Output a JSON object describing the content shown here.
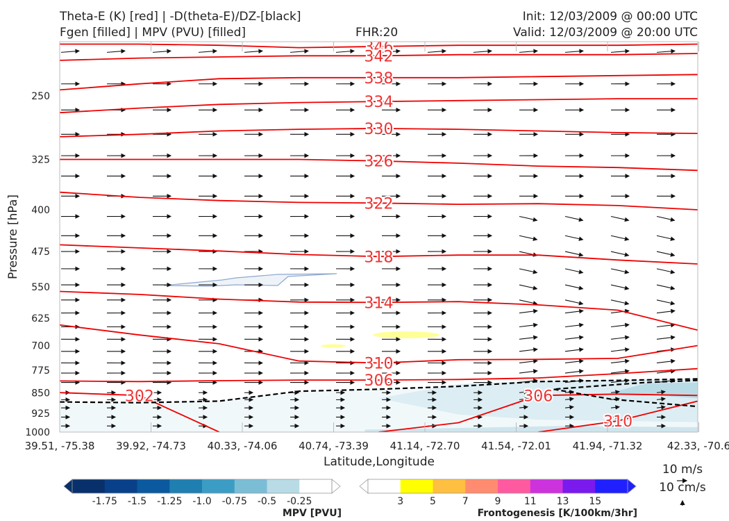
{
  "header": {
    "title_left_1": "Theta-E (K) [red] | -D(theta-E)/DZ-[black]",
    "title_left_2": "Fgen [filled] | MPV (PVU) [filled]",
    "fhr": "FHR:20",
    "init": "Init: 12/03/2009 @ 00:00 UTC",
    "valid": "Valid: 12/03/2009 @ 20:00 UTC"
  },
  "chart_data": {
    "type": "cross-section",
    "xlabel": "Latitude,Longitude",
    "ylabel": "Pressure [hPa]",
    "x_ticks": [
      "39.51, -75.38",
      "39.92, -74.73",
      "40.33, -74.06",
      "40.74, -73.39",
      "41.14, -72.70",
      "41.54, -72.01",
      "41.94, -71.32",
      "42.33, -70.6"
    ],
    "y_ticks": [
      250,
      325,
      400,
      475,
      550,
      625,
      700,
      775,
      850,
      925,
      1000
    ],
    "ylim": [
      1000,
      200
    ],
    "y_scale": "log",
    "theta_e_contours": [
      {
        "label": "346",
        "color": "#ee0000",
        "levels_hPa": [
          202,
          202,
          203,
          205,
          204,
          203,
          203,
          203,
          202
        ]
      },
      {
        "label": "342",
        "color": "#ee0000",
        "levels_hPa": [
          216,
          214,
          213,
          212,
          212,
          211,
          211,
          211,
          210
        ]
      },
      {
        "label": "338",
        "color": "#ee0000",
        "levels_hPa": [
          244,
          238,
          233,
          232,
          232,
          232,
          231,
          230,
          229
        ]
      },
      {
        "label": "334",
        "color": "#ee0000",
        "levels_hPa": [
          268,
          263,
          259,
          257,
          256,
          255,
          254,
          253,
          253
        ]
      },
      {
        "label": "330",
        "color": "#ee0000",
        "levels_hPa": [
          296,
          293,
          289,
          287,
          286,
          287,
          289,
          291,
          292
        ]
      },
      {
        "label": "326",
        "color": "#ee0000",
        "levels_hPa": [
          325,
          325,
          325,
          325,
          327,
          330,
          334,
          336,
          340
        ]
      },
      {
        "label": "322",
        "color": "#ee0000",
        "levels_hPa": [
          372,
          380,
          385,
          388,
          389,
          391,
          390,
          393,
          400
        ]
      },
      {
        "label": "318",
        "color": "#ee0000",
        "levels_hPa": [
          462,
          468,
          474,
          481,
          485,
          482,
          482,
          492,
          500
        ]
      },
      {
        "label": "314",
        "color": "#ee0000",
        "levels_hPa": [
          560,
          567,
          578,
          585,
          586,
          584,
          592,
          605,
          657
        ]
      },
      {
        "label": "310",
        "color": "#ee0000",
        "levels_hPa": [
          643,
          670,
          695,
          746,
          752,
          742,
          741,
          738,
          700
        ]
      },
      {
        "label": "306",
        "color": "#ee0000",
        "levels_hPa": [
          810,
          812,
          809,
          807,
          807,
          805,
          800,
          786,
          770
        ]
      },
      {
        "label": "306",
        "color": "#ee0000",
        "levels_hPa": [
          null,
          null,
          null,
          null,
          1000,
          962,
          860,
          855,
          860
        ]
      },
      {
        "label": "302",
        "color": "#ee0000",
        "levels_hPa": [
          850,
          860,
          1000,
          null,
          null,
          null,
          null,
          null,
          null
        ]
      },
      {
        "label": "310",
        "color": "#ee0000",
        "levels_hPa": [
          null,
          null,
          null,
          null,
          null,
          null,
          1000,
          955,
          880
        ]
      }
    ],
    "neg_dthetae_dz_dashed": {
      "color": "#000000",
      "levels_hPa": [
        883,
        886,
        880,
        845,
        838,
        828,
        812,
        808,
        803
      ]
    },
    "mpv_filled": {
      "levels": [
        -1.75,
        -1.5,
        -1.25,
        -1.0,
        -0.75,
        -0.5,
        -0.25
      ],
      "note": "weak negative values near surface"
    },
    "fgen_filled": {
      "levels": [
        3,
        5,
        7,
        9,
        11,
        13,
        15
      ]
    },
    "colorbar_mpv": {
      "label": "MPV [PVU]",
      "ticks": [
        "-1.75",
        "-1.5",
        "-1.25",
        "-1.0",
        "-0.75",
        "-0.5",
        "-0.25"
      ],
      "colors": [
        "#08306b",
        "#08418a",
        "#0b599e",
        "#1f7fb0",
        "#3c9dc4",
        "#7cbdd6",
        "#b9dbe6",
        "#ffffff"
      ]
    },
    "colorbar_fgen": {
      "label": "Frontogenesis [K/100km/3hr]",
      "ticks": [
        "3",
        "5",
        "7",
        "9",
        "11",
        "13",
        "15"
      ],
      "colors": [
        "#ffffff",
        "#ffff00",
        "#ffbf40",
        "#ff8c70",
        "#ff5aa0",
        "#cc33dd",
        "#7a1aee",
        "#2020ff"
      ]
    },
    "wind_legend": {
      "horizontal": "10 m/s",
      "vertical": "10 cm/s"
    }
  }
}
